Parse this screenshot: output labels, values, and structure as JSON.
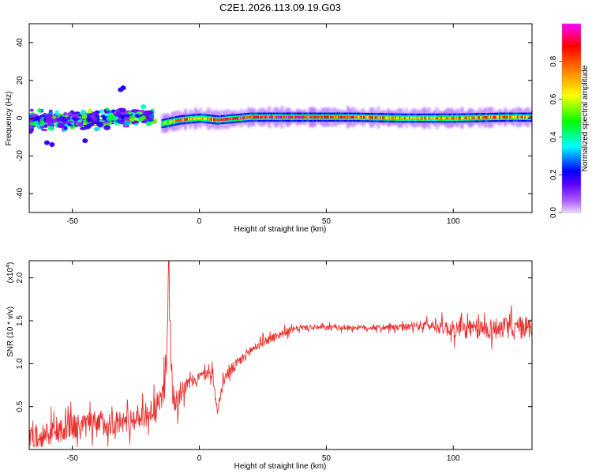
{
  "title": "C2E1.2026.113.09.19.G03",
  "chart_data": [
    {
      "type": "heatmap",
      "xlabel": "Height of straight line (km)",
      "ylabel": "Frequency (Hz)",
      "xlim": [
        -67,
        131
      ],
      "ylim": [
        -50,
        50
      ],
      "xticks": [
        -50,
        0,
        50,
        100
      ],
      "yticks": [
        -40,
        -20,
        0,
        20,
        40
      ],
      "colorbar": {
        "label": "Normalized spectral amplitude",
        "range": [
          0,
          1
        ],
        "ticks": [
          0.0,
          0.2,
          0.4,
          0.6,
          0.8
        ],
        "colors": [
          "#e8d8f8",
          "#7a00ff",
          "#0000ff",
          "#00ffff",
          "#00ff00",
          "#ffff00",
          "#ff8000",
          "#ff0000",
          "#ff00ff"
        ]
      },
      "ridge": [
        {
          "height_km": -15,
          "frequency_hz": -3,
          "amplitude": 0.55
        },
        {
          "height_km": -8,
          "frequency_hz": -1,
          "amplitude": 0.85
        },
        {
          "height_km": 0,
          "frequency_hz": 0,
          "amplitude": 0.7
        },
        {
          "height_km": 7,
          "frequency_hz": -1,
          "amplitude": 0.9
        },
        {
          "height_km": 20,
          "frequency_hz": 0.5,
          "amplitude": 0.95
        },
        {
          "height_km": 40,
          "frequency_hz": 0.5,
          "amplitude": 0.98
        },
        {
          "height_km": 60,
          "frequency_hz": 0.5,
          "amplitude": 0.85
        },
        {
          "height_km": 80,
          "frequency_hz": 0,
          "amplitude": 0.8
        },
        {
          "height_km": 100,
          "frequency_hz": 0,
          "amplitude": 0.8
        },
        {
          "height_km": 120,
          "frequency_hz": 0.5,
          "amplitude": 0.85
        },
        {
          "height_km": 130,
          "frequency_hz": 0.5,
          "amplitude": 0.8
        }
      ],
      "scatter_region": {
        "height_km": [
          -67,
          -18
        ],
        "frequency_hz": [
          -18,
          8
        ],
        "amplitude": [
          0.1,
          0.6
        ]
      }
    },
    {
      "type": "line",
      "xlabel": "Height of straight line (km)",
      "ylabel": "SNR (10 * v/v)",
      "y_multiplier": "(x10",
      "y_multiplier_exp": "4",
      "y_multiplier_close": ")",
      "xlim": [
        -67,
        131
      ],
      "ylim": [
        0,
        2.2
      ],
      "xticks": [
        -50,
        0,
        50,
        100
      ],
      "yticks": [
        0.5,
        1.0,
        1.5,
        2.0
      ],
      "color": "#e8312f",
      "series": [
        {
          "x": [
            -67,
            -60,
            -50,
            -40,
            -30,
            -20,
            -15,
            -13,
            -12,
            -11,
            -10,
            -5,
            0,
            5,
            7,
            10,
            15,
            20,
            25,
            30,
            35,
            40,
            50,
            60,
            70,
            80,
            90,
            100,
            110,
            120,
            131
          ],
          "y": [
            0.15,
            0.18,
            0.25,
            0.3,
            0.32,
            0.42,
            0.55,
            1.0,
            2.2,
            0.8,
            0.6,
            0.75,
            0.85,
            0.9,
            0.45,
            0.85,
            1.0,
            1.15,
            1.25,
            1.32,
            1.38,
            1.42,
            1.42,
            1.42,
            1.42,
            1.42,
            1.45,
            1.4,
            1.4,
            1.42,
            1.42
          ],
          "noise": [
            0.14,
            0.14,
            0.16,
            0.15,
            0.14,
            0.14,
            0.16,
            0.3,
            0,
            0.2,
            0.2,
            0.08,
            0.06,
            0.07,
            0.05,
            0.07,
            0.07,
            0.06,
            0.05,
            0.05,
            0.04,
            0.03,
            0.03,
            0.03,
            0.03,
            0.04,
            0.06,
            0.1,
            0.12,
            0.12,
            0.14
          ]
        }
      ]
    }
  ]
}
